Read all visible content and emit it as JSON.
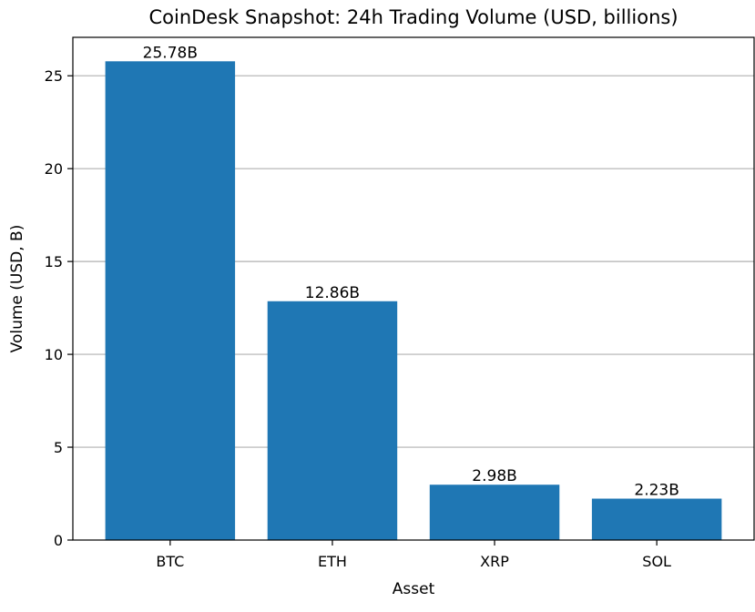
{
  "chart_data": {
    "type": "bar",
    "title": "CoinDesk Snapshot: 24h Trading Volume (USD, billions)",
    "xlabel": "Asset",
    "ylabel": "Volume (USD, B)",
    "categories": [
      "BTC",
      "ETH",
      "XRP",
      "SOL"
    ],
    "values": [
      25.78,
      12.86,
      2.98,
      2.23
    ],
    "data_labels": [
      "25.78B",
      "12.86B",
      "2.98B",
      "2.23B"
    ],
    "ylim": [
      0,
      27.07
    ],
    "yticks": [
      0,
      5,
      10,
      15,
      20,
      25
    ],
    "grid": "y",
    "bar_color": "#1f77b4"
  }
}
